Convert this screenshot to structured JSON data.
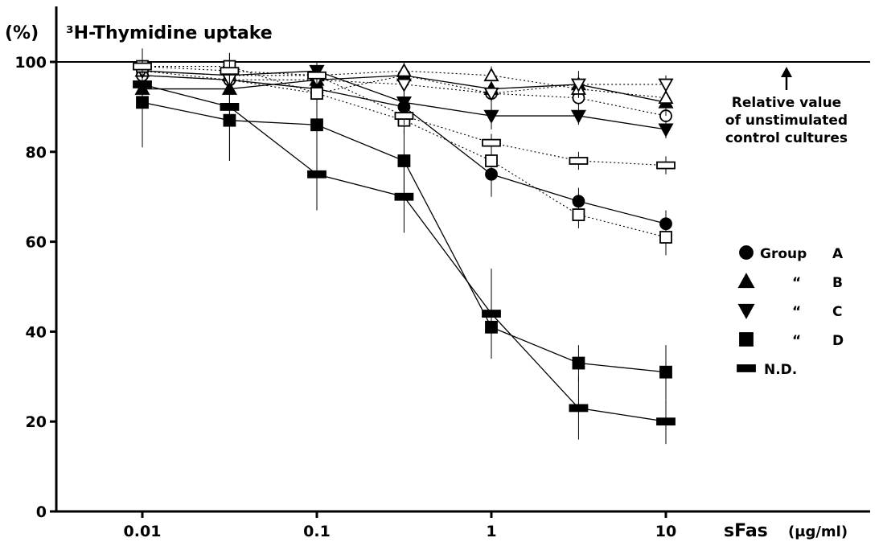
{
  "chart_data": {
    "type": "line",
    "title": "³H-Thymidine uptake",
    "ylabel": "(%)",
    "xlabel": "sFas",
    "xunit": "(μg/ml)",
    "xscale": "log",
    "xlim": [
      0.005,
      20
    ],
    "ylim": [
      0,
      100
    ],
    "xticks": [
      0.01,
      0.1,
      1,
      10
    ],
    "xtick_labels": [
      "0.01",
      "0.1",
      "1",
      "10"
    ],
    "yticks": [
      0,
      20,
      40,
      60,
      80,
      100
    ],
    "ytick_labels": [
      "0",
      "20",
      "40",
      "60",
      "80",
      "100"
    ],
    "grid": false,
    "reference_line": {
      "y": 100,
      "annotation": [
        "Relative value",
        "of unstimulated",
        "control cultures"
      ]
    },
    "legend": {
      "placement": "right",
      "entries": [
        {
          "marker": "circle",
          "prefix": "Group",
          "letter": "A"
        },
        {
          "marker": "triangle-up",
          "prefix": "“",
          "letter": "B"
        },
        {
          "marker": "triangle-down",
          "prefix": "“",
          "letter": "C"
        },
        {
          "marker": "square",
          "prefix": "“",
          "letter": "D"
        },
        {
          "marker": "dash",
          "prefix": "N.D.",
          "letter": ""
        }
      ]
    },
    "x": [
      0.01,
      0.0316,
      0.1,
      0.316,
      1,
      3.16,
      10
    ],
    "series": [
      {
        "group": "A",
        "marker": "circle",
        "filled": true,
        "style": "solid",
        "values": [
          97,
          96,
          94,
          90,
          75,
          69,
          64
        ],
        "err": [
          3,
          3,
          3,
          3,
          5,
          3,
          3
        ]
      },
      {
        "group": "A",
        "marker": "circle",
        "filled": false,
        "style": "dotted",
        "values": [
          97,
          96,
          93,
          97,
          93,
          92,
          88
        ],
        "err": [
          2,
          2,
          2,
          2,
          2,
          2,
          2
        ]
      },
      {
        "group": "B",
        "marker": "triangle-up",
        "filled": true,
        "style": "solid",
        "values": [
          94,
          94,
          96,
          97,
          94,
          95,
          91
        ],
        "err": [
          3,
          3,
          3,
          3,
          3,
          3,
          3
        ]
      },
      {
        "group": "B",
        "marker": "triangle-up",
        "filled": false,
        "style": "dotted",
        "values": [
          98,
          97,
          97,
          98,
          97,
          94,
          92
        ],
        "err": [
          2,
          2,
          2,
          2,
          2,
          2,
          2
        ]
      },
      {
        "group": "C",
        "marker": "triangle-down",
        "filled": true,
        "style": "solid",
        "values": [
          98,
          97,
          98,
          91,
          88,
          88,
          85
        ],
        "err": [
          2,
          3,
          2,
          3,
          3,
          2,
          2
        ]
      },
      {
        "group": "C",
        "marker": "triangle-down",
        "filled": false,
        "style": "dotted",
        "values": [
          98,
          96,
          96,
          95,
          93,
          95,
          95
        ],
        "err": [
          2,
          2,
          2,
          2,
          2,
          2,
          2
        ]
      },
      {
        "group": "D",
        "marker": "square",
        "filled": true,
        "style": "solid",
        "values": [
          91,
          87,
          86,
          78,
          41,
          33,
          31
        ],
        "err": [
          10,
          9,
          4,
          7,
          6,
          4,
          6
        ]
      },
      {
        "group": "D",
        "marker": "square",
        "filled": false,
        "style": "dotted",
        "values": [
          99,
          99,
          93,
          87,
          78,
          66,
          61
        ],
        "err": [
          2,
          3,
          3,
          3,
          5,
          3,
          4
        ]
      },
      {
        "group": "N.D.",
        "marker": "dash",
        "filled": true,
        "style": "solid",
        "values": [
          95,
          90,
          75,
          70,
          44,
          23,
          20
        ],
        "err": [
          8,
          12,
          8,
          8,
          10,
          7,
          5
        ]
      },
      {
        "group": "N.D.",
        "marker": "dash",
        "filled": false,
        "style": "dotted",
        "values": [
          99,
          98,
          97,
          88,
          82,
          78,
          77
        ],
        "err": [
          2,
          2,
          2,
          2,
          2,
          2,
          2
        ]
      }
    ]
  }
}
